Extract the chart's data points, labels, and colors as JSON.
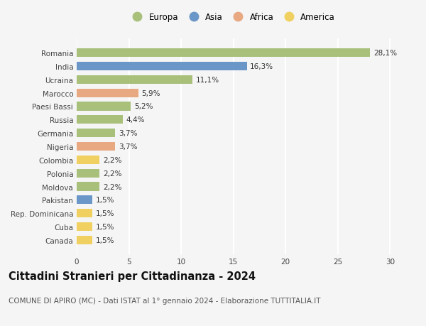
{
  "countries": [
    "Romania",
    "India",
    "Ucraina",
    "Marocco",
    "Paesi Bassi",
    "Russia",
    "Germania",
    "Nigeria",
    "Colombia",
    "Polonia",
    "Moldova",
    "Pakistan",
    "Rep. Dominicana",
    "Cuba",
    "Canada"
  ],
  "values": [
    28.1,
    16.3,
    11.1,
    5.9,
    5.2,
    4.4,
    3.7,
    3.7,
    2.2,
    2.2,
    2.2,
    1.5,
    1.5,
    1.5,
    1.5
  ],
  "labels": [
    "28,1%",
    "16,3%",
    "11,1%",
    "5,9%",
    "5,2%",
    "4,4%",
    "3,7%",
    "3,7%",
    "2,2%",
    "2,2%",
    "2,2%",
    "1,5%",
    "1,5%",
    "1,5%",
    "1,5%"
  ],
  "continents": [
    "Europa",
    "Asia",
    "Europa",
    "Africa",
    "Europa",
    "Europa",
    "Europa",
    "Africa",
    "America",
    "Europa",
    "Europa",
    "Asia",
    "America",
    "America",
    "America"
  ],
  "continent_colors": {
    "Europa": "#a8c07a",
    "Asia": "#6b96c8",
    "Africa": "#e8a882",
    "America": "#f0d060"
  },
  "legend_order": [
    "Europa",
    "Asia",
    "Africa",
    "America"
  ],
  "title": "Cittadini Stranieri per Cittadinanza - 2024",
  "subtitle": "COMUNE DI APIRO (MC) - Dati ISTAT al 1° gennaio 2024 - Elaborazione TUTTITALIA.IT",
  "xlim": [
    0,
    31
  ],
  "xticks": [
    0,
    5,
    10,
    15,
    20,
    25,
    30
  ],
  "background_color": "#f5f5f5",
  "bar_height": 0.65,
  "grid_color": "#ffffff",
  "title_fontsize": 10.5,
  "subtitle_fontsize": 7.5,
  "label_fontsize": 7.5,
  "tick_fontsize": 7.5,
  "legend_fontsize": 8.5
}
